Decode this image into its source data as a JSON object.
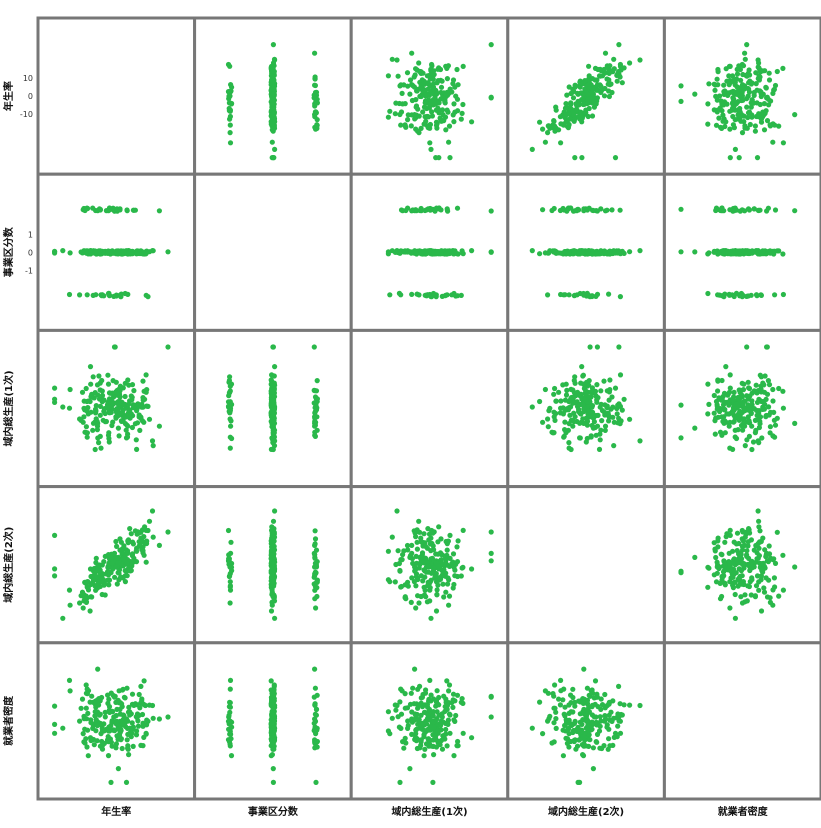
{
  "colors": {
    "points": "#2ab84a",
    "frame": "#777777",
    "background": "#ffffff"
  },
  "chart_data": {
    "type": "scatter",
    "layout": "pairplot-matrix",
    "grid": false,
    "legend": "none",
    "diagonal": "empty",
    "variables": [
      {
        "id": "v1",
        "row_label": "年生率",
        "col_label": "年生率"
      },
      {
        "id": "v2",
        "row_label": "事業区分数",
        "col_label": "事業区分数"
      },
      {
        "id": "v3",
        "row_label": "域内総生産(1次)",
        "col_label": "域内総生産(1次)"
      },
      {
        "id": "v4",
        "row_label": "域内総生産(2次)",
        "col_label": "域内総生産(2次)"
      },
      {
        "id": "v5",
        "row_label": "就業者密度",
        "col_label": "就業者密度"
      }
    ],
    "row_tick_labels": [
      [
        "10",
        "0",
        "-10"
      ],
      [
        "1",
        "0",
        "-1"
      ],
      [],
      [],
      []
    ],
    "variable_profiles": [
      {
        "kind": "continuous",
        "center": 0.0,
        "spread": 1.0
      },
      {
        "kind": "discrete",
        "levels": [
          -1,
          0,
          1
        ],
        "weights": [
          0.15,
          0.7,
          0.15
        ]
      },
      {
        "kind": "continuous",
        "center": 0.0,
        "spread": 1.0
      },
      {
        "kind": "continuous",
        "center": 0.0,
        "spread": 1.0
      },
      {
        "kind": "continuous",
        "center": 0.0,
        "spread": 1.0
      }
    ],
    "correlations": [
      [
        1.0,
        0.0,
        0.05,
        0.85,
        0.0
      ],
      [
        0.0,
        1.0,
        0.0,
        0.0,
        0.0
      ],
      [
        0.05,
        0.0,
        1.0,
        0.1,
        0.0
      ],
      [
        0.85,
        0.0,
        0.1,
        1.0,
        0.05
      ],
      [
        0.0,
        0.0,
        0.0,
        0.05,
        1.0
      ]
    ],
    "n_points_per_panel": 220
  }
}
